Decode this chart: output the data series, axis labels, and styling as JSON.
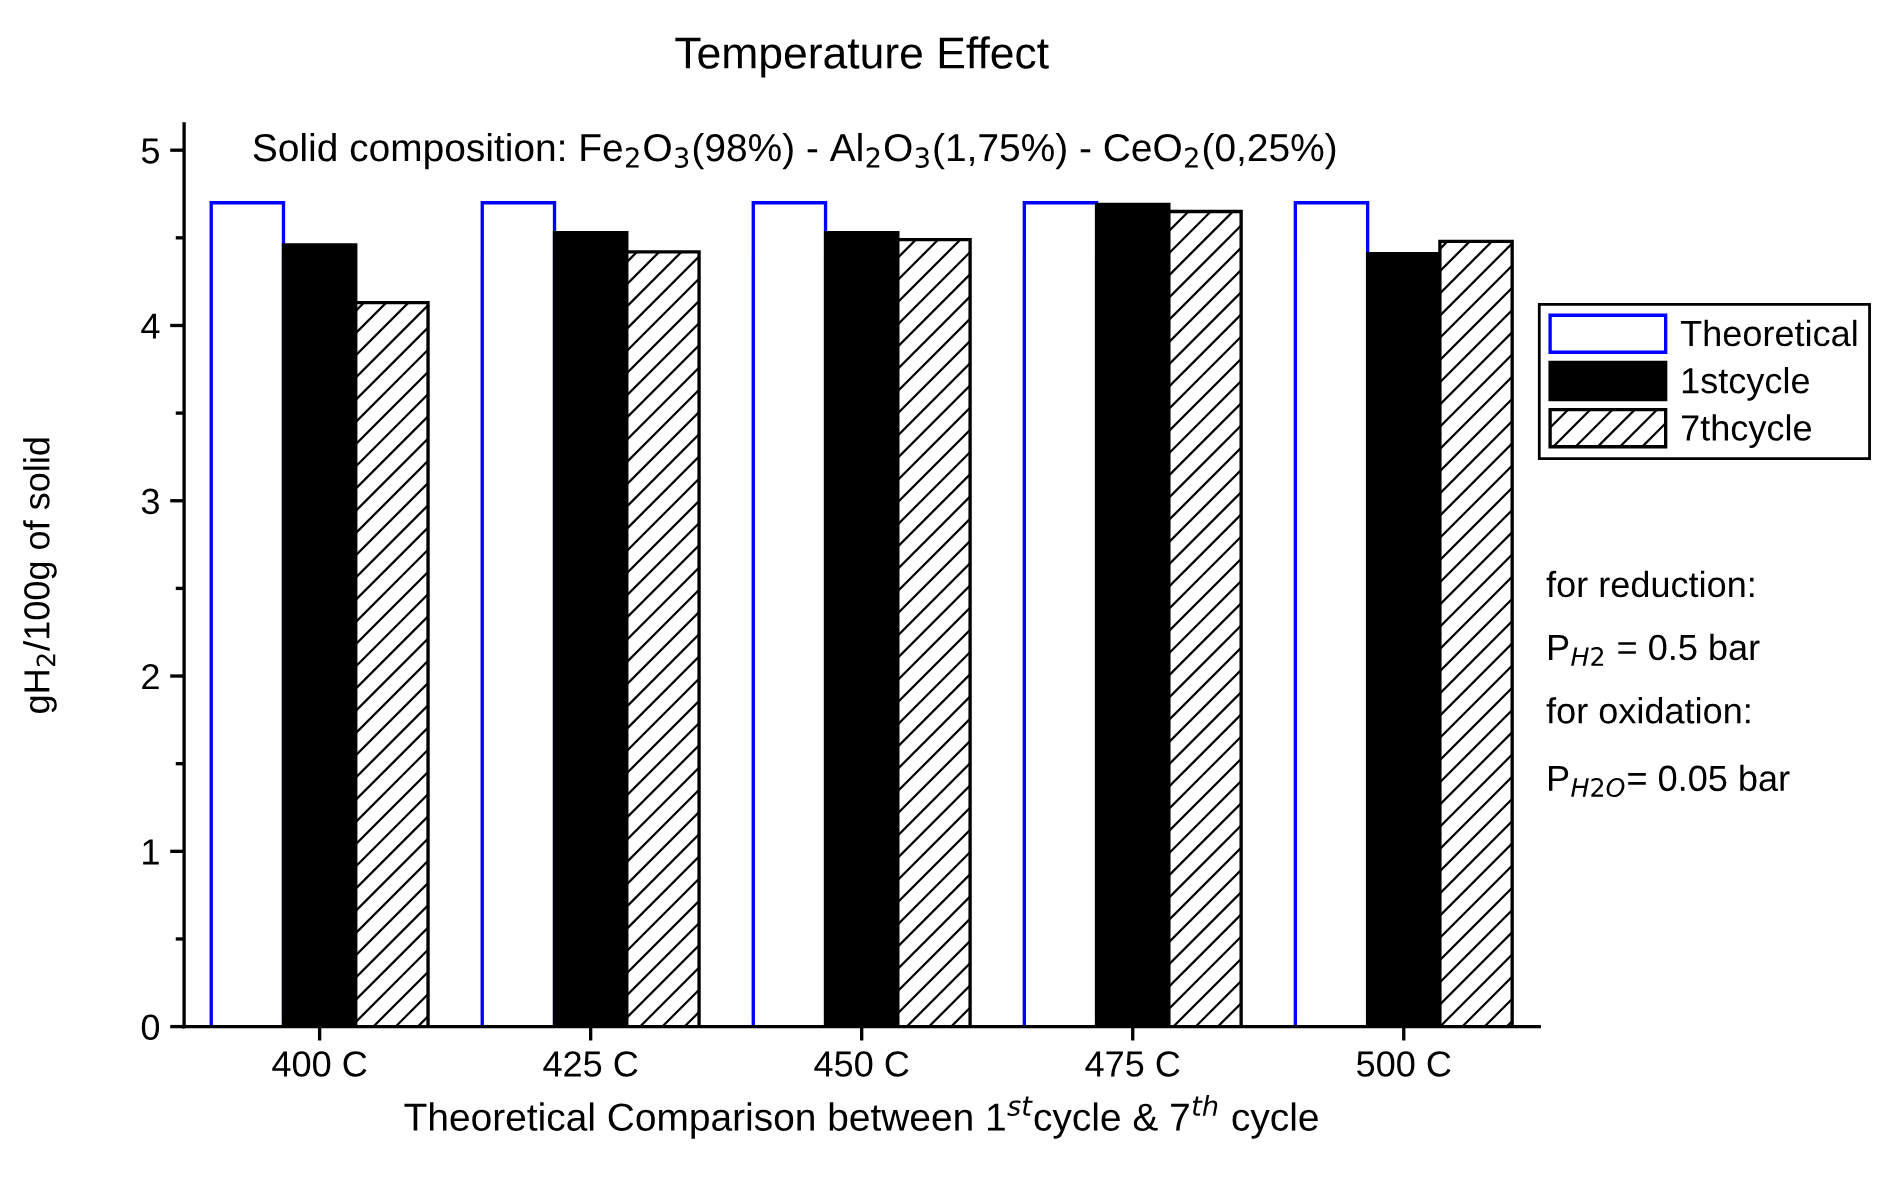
{
  "chart_data": {
    "type": "bar",
    "title": "Temperature Effect",
    "xlabel": "Theoretical Comparison between 1$^{st}$cycle & 7$^{th}$ cycle",
    "ylabel": "gH$_{2}$/100g of solid",
    "categories": [
      "400 C",
      "425 C",
      "450 C",
      "475 C",
      "500 C"
    ],
    "series": [
      {
        "name": "Theoretical",
        "color": "#0000ff",
        "values": [
          4.7,
          4.7,
          4.7,
          4.7,
          4.7
        ]
      },
      {
        "name": "1stcycle",
        "color": "#000000",
        "values": [
          4.46,
          4.53,
          4.53,
          4.69,
          4.41
        ]
      },
      {
        "name": "7thcycle",
        "color": "#000000",
        "values": [
          4.13,
          4.42,
          4.49,
          4.65,
          4.48
        ]
      }
    ],
    "ylim": [
      0,
      5.15
    ],
    "yticks": [
      0,
      {
        "value": 0.5,
        "label": null
      },
      1,
      {
        "value": 1.5,
        "label": null
      },
      2,
      {
        "value": 2.5,
        "label": null
      },
      3,
      {
        "value": 3.5,
        "label": null
      },
      4,
      {
        "value": 4.5,
        "label": null
      },
      5
    ],
    "grid": false,
    "legend": "right",
    "annotations": [
      "Solid composition: Fe$_{2}$O$_{3}$(98%) - Al$_{2}$O$_{3}$(1,75%) - CeO$_{2}$(0,25%)",
      "for reduction:",
      "P$_{H2}$ = 0.5 bar",
      "for oxidation:",
      "P$_{H2O}$= 0.05 bar"
    ]
  }
}
